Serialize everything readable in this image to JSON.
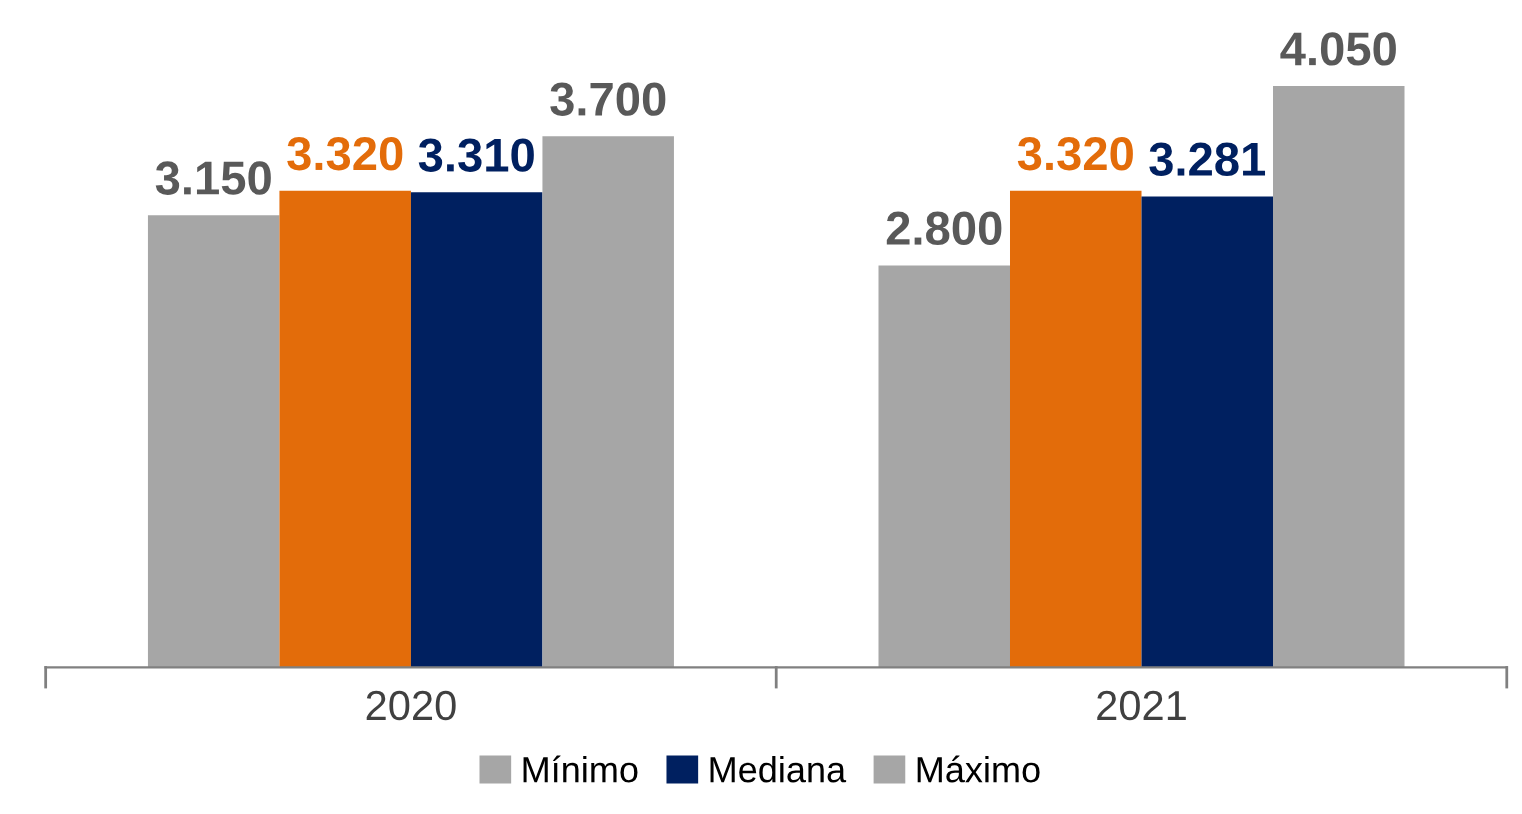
{
  "chart_data": {
    "type": "bar",
    "categories": [
      "2020",
      "2021"
    ],
    "series": [
      {
        "name": "Mínimo",
        "color": "#a6a6a6",
        "values": [
          3150,
          2800
        ],
        "value_labels": [
          "3.150",
          "2.800"
        ]
      },
      {
        "color": "#e36c0a",
        "values": [
          3320,
          3320
        ],
        "value_labels": [
          "3.320",
          "3.320"
        ]
      },
      {
        "name": "Mediana",
        "color": "#002060",
        "values": [
          3310,
          3281
        ],
        "value_labels": [
          "3.310",
          "3.281"
        ]
      },
      {
        "name": "Máximo",
        "color": "#a6a6a6",
        "values": [
          3700,
          4050
        ],
        "value_labels": [
          "3.700",
          "4.050"
        ]
      }
    ],
    "tick_labels": "x",
    "legend": "bottom",
    "grid": false
  }
}
